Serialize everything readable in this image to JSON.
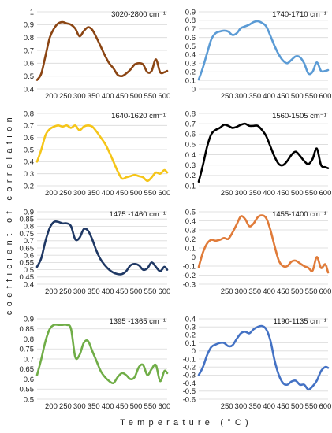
{
  "figure": {
    "ylabel": "coefficient of correlation",
    "xlabel": "Temperature (°C)"
  },
  "chart_data": [
    {
      "type": "line",
      "title": "3020-2800 cm⁻¹",
      "color": "#8B4513",
      "ylim": [
        0.4,
        1.0
      ],
      "yticks": [
        0.4,
        0.5,
        0.6,
        0.7,
        0.8,
        0.9,
        1.0
      ],
      "xlim": [
        150,
        610
      ],
      "xticks": [
        200,
        250,
        300,
        350,
        400,
        450,
        500,
        550,
        600
      ],
      "x": [
        150,
        165,
        180,
        195,
        210,
        225,
        240,
        255,
        270,
        285,
        300,
        315,
        330,
        345,
        360,
        375,
        390,
        405,
        420,
        435,
        450,
        465,
        480,
        495,
        510,
        525,
        540,
        555,
        570,
        585,
        600,
        610
      ],
      "y": [
        0.47,
        0.52,
        0.66,
        0.8,
        0.87,
        0.91,
        0.92,
        0.91,
        0.9,
        0.87,
        0.81,
        0.85,
        0.88,
        0.86,
        0.8,
        0.73,
        0.66,
        0.6,
        0.56,
        0.51,
        0.5,
        0.52,
        0.55,
        0.59,
        0.6,
        0.59,
        0.53,
        0.54,
        0.63,
        0.53,
        0.53,
        0.54
      ]
    },
    {
      "type": "line",
      "title": "1740-1710 cm⁻¹",
      "color": "#5B9BD5",
      "ylim": [
        0,
        0.9
      ],
      "yticks": [
        0,
        0.1,
        0.2,
        0.3,
        0.4,
        0.5,
        0.6,
        0.7,
        0.8,
        0.9
      ],
      "xlim": [
        150,
        610
      ],
      "xticks": [
        250,
        300,
        350,
        400,
        450,
        500,
        550,
        600
      ],
      "x": [
        150,
        165,
        180,
        195,
        210,
        225,
        240,
        255,
        270,
        285,
        300,
        315,
        330,
        345,
        360,
        375,
        390,
        405,
        420,
        435,
        450,
        465,
        480,
        495,
        510,
        525,
        540,
        555,
        570,
        585,
        600,
        610
      ],
      "y": [
        0.11,
        0.25,
        0.42,
        0.58,
        0.65,
        0.67,
        0.68,
        0.67,
        0.63,
        0.65,
        0.71,
        0.73,
        0.75,
        0.78,
        0.79,
        0.77,
        0.73,
        0.62,
        0.5,
        0.4,
        0.33,
        0.3,
        0.34,
        0.38,
        0.37,
        0.3,
        0.18,
        0.2,
        0.31,
        0.21,
        0.21,
        0.22
      ]
    },
    {
      "type": "line",
      "title": "1640-1620 cm⁻¹",
      "color": "#F5C518",
      "ylim": [
        0.2,
        0.8
      ],
      "yticks": [
        0.2,
        0.3,
        0.4,
        0.5,
        0.6,
        0.7,
        0.8
      ],
      "xlim": [
        150,
        610
      ],
      "xticks": [
        200,
        250,
        300,
        350,
        400,
        450,
        500,
        550,
        600
      ],
      "x": [
        150,
        165,
        180,
        195,
        210,
        225,
        240,
        255,
        270,
        285,
        300,
        315,
        330,
        345,
        360,
        375,
        390,
        405,
        420,
        435,
        450,
        465,
        480,
        495,
        510,
        525,
        540,
        555,
        570,
        585,
        600,
        610
      ],
      "y": [
        0.4,
        0.5,
        0.62,
        0.67,
        0.69,
        0.7,
        0.69,
        0.7,
        0.68,
        0.7,
        0.66,
        0.69,
        0.7,
        0.69,
        0.65,
        0.6,
        0.55,
        0.48,
        0.4,
        0.32,
        0.26,
        0.27,
        0.28,
        0.29,
        0.28,
        0.27,
        0.24,
        0.27,
        0.31,
        0.3,
        0.33,
        0.31
      ]
    },
    {
      "type": "line",
      "title": "1560-1505 cm⁻¹",
      "color": "#000000",
      "ylim": [
        0.1,
        0.8
      ],
      "yticks": [
        0.1,
        0.2,
        0.3,
        0.4,
        0.5,
        0.6,
        0.7,
        0.8
      ],
      "xlim": [
        150,
        610
      ],
      "xticks": [
        250,
        300,
        350,
        400,
        450,
        500,
        550,
        600
      ],
      "x": [
        150,
        165,
        180,
        195,
        210,
        225,
        240,
        255,
        270,
        285,
        300,
        315,
        330,
        345,
        360,
        375,
        390,
        405,
        420,
        435,
        450,
        465,
        480,
        495,
        510,
        525,
        540,
        555,
        570,
        585,
        600,
        610
      ],
      "y": [
        0.14,
        0.3,
        0.48,
        0.6,
        0.64,
        0.66,
        0.69,
        0.68,
        0.66,
        0.67,
        0.69,
        0.7,
        0.68,
        0.68,
        0.68,
        0.64,
        0.58,
        0.48,
        0.38,
        0.31,
        0.3,
        0.34,
        0.4,
        0.43,
        0.39,
        0.34,
        0.31,
        0.36,
        0.46,
        0.3,
        0.28,
        0.27
      ]
    },
    {
      "type": "line",
      "title": "1475 -1460 cm⁻¹",
      "color": "#1F3864",
      "ylim": [
        0.4,
        0.9
      ],
      "yticks": [
        0.4,
        0.45,
        0.5,
        0.55,
        0.6,
        0.65,
        0.7,
        0.75,
        0.8,
        0.85,
        0.9
      ],
      "xlim": [
        150,
        610
      ],
      "xticks": [
        200,
        250,
        300,
        350,
        400,
        450,
        500,
        550,
        600
      ],
      "x": [
        150,
        165,
        180,
        195,
        210,
        225,
        240,
        255,
        270,
        285,
        300,
        315,
        330,
        345,
        360,
        375,
        390,
        405,
        420,
        435,
        450,
        465,
        480,
        495,
        510,
        525,
        540,
        555,
        570,
        585,
        600,
        610
      ],
      "y": [
        0.52,
        0.58,
        0.7,
        0.79,
        0.83,
        0.83,
        0.82,
        0.82,
        0.8,
        0.71,
        0.72,
        0.78,
        0.77,
        0.71,
        0.63,
        0.57,
        0.53,
        0.5,
        0.48,
        0.47,
        0.47,
        0.49,
        0.53,
        0.54,
        0.53,
        0.5,
        0.51,
        0.55,
        0.52,
        0.49,
        0.52,
        0.5
      ]
    },
    {
      "type": "line",
      "title": "1455-1400 cm⁻¹",
      "color": "#E07B39",
      "ylim": [
        -0.3,
        0.5
      ],
      "yticks": [
        -0.3,
        -0.2,
        -0.1,
        0,
        0.1,
        0.2,
        0.3,
        0.4,
        0.5
      ],
      "xlim": [
        150,
        610
      ],
      "xticks": [
        250,
        300,
        350,
        400,
        450,
        500,
        550,
        600
      ],
      "x": [
        150,
        165,
        180,
        195,
        210,
        225,
        240,
        255,
        270,
        285,
        300,
        315,
        330,
        345,
        360,
        375,
        390,
        405,
        420,
        435,
        450,
        465,
        480,
        495,
        510,
        525,
        540,
        555,
        570,
        585,
        600,
        610
      ],
      "y": [
        -0.11,
        0.05,
        0.15,
        0.19,
        0.18,
        0.19,
        0.21,
        0.2,
        0.27,
        0.36,
        0.45,
        0.42,
        0.34,
        0.37,
        0.44,
        0.46,
        0.43,
        0.3,
        0.12,
        -0.04,
        -0.1,
        -0.1,
        -0.05,
        -0.04,
        -0.07,
        -0.1,
        -0.12,
        -0.15,
        0.0,
        -0.12,
        -0.08,
        -0.17
      ]
    },
    {
      "type": "line",
      "title": "1395 -1365 cm⁻¹",
      "color": "#70AD47",
      "ylim": [
        0.5,
        0.9
      ],
      "yticks": [
        0.5,
        0.55,
        0.6,
        0.65,
        0.7,
        0.75,
        0.8,
        0.85,
        0.9
      ],
      "xlim": [
        150,
        610
      ],
      "xticks": [
        200,
        250,
        300,
        350,
        400,
        450,
        500,
        550,
        600
      ],
      "x": [
        150,
        165,
        180,
        195,
        210,
        225,
        240,
        255,
        270,
        285,
        300,
        315,
        330,
        345,
        360,
        375,
        390,
        405,
        420,
        435,
        450,
        465,
        480,
        495,
        510,
        525,
        540,
        555,
        570,
        585,
        600,
        610
      ],
      "y": [
        0.62,
        0.7,
        0.79,
        0.85,
        0.87,
        0.87,
        0.87,
        0.87,
        0.85,
        0.71,
        0.72,
        0.78,
        0.79,
        0.74,
        0.69,
        0.64,
        0.61,
        0.59,
        0.58,
        0.61,
        0.63,
        0.62,
        0.6,
        0.61,
        0.66,
        0.67,
        0.62,
        0.65,
        0.67,
        0.59,
        0.64,
        0.63
      ]
    },
    {
      "type": "line",
      "title": "1190-1135 cm⁻¹",
      "color": "#4472C4",
      "ylim": [
        -0.6,
        0.4
      ],
      "yticks": [
        -0.6,
        -0.5,
        -0.4,
        -0.3,
        -0.2,
        -0.1,
        0,
        0.1,
        0.2,
        0.3,
        0.4
      ],
      "xlim": [
        150,
        610
      ],
      "xticks": [
        250,
        300,
        350,
        400,
        450,
        500,
        550,
        600
      ],
      "x": [
        150,
        165,
        180,
        195,
        210,
        225,
        240,
        255,
        270,
        285,
        300,
        315,
        330,
        345,
        360,
        375,
        390,
        405,
        420,
        435,
        450,
        465,
        480,
        495,
        510,
        525,
        540,
        555,
        570,
        585,
        600,
        610
      ],
      "y": [
        -0.3,
        -0.2,
        -0.05,
        0.05,
        0.08,
        0.1,
        0.1,
        0.06,
        0.07,
        0.15,
        0.22,
        0.24,
        0.22,
        0.27,
        0.3,
        0.31,
        0.27,
        0.13,
        -0.12,
        -0.3,
        -0.4,
        -0.42,
        -0.38,
        -0.37,
        -0.42,
        -0.42,
        -0.48,
        -0.44,
        -0.37,
        -0.25,
        -0.2,
        -0.21
      ]
    }
  ]
}
